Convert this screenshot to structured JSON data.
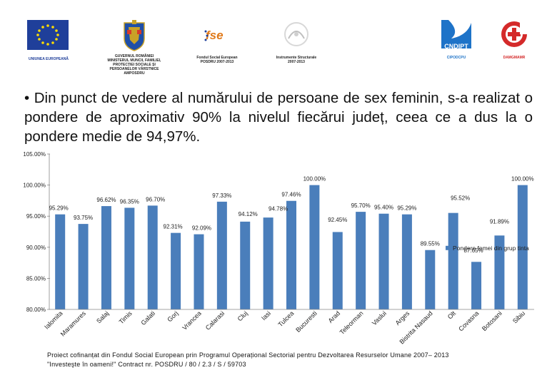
{
  "logos": {
    "eu_caption": "UNIUNEA EUROPEANĂ",
    "gov_caption_lines": [
      "GUVERNUL ROMÂNIEI",
      "MINISTERUL MUNCII, FAMILIEI,",
      "PROTECȚIEI SOCIALE ȘI",
      "PERSOANELOR VÂRSTNICE",
      "AMPOSDRU"
    ],
    "fse_mark": "fse",
    "fse_caption_lines": [
      "Fondul Social European",
      "POSDRU 2007-2013"
    ],
    "is_caption_lines": [
      "Instrumente Structurale",
      "2007-2013"
    ],
    "cndipt_mark": "CNDIPT",
    "cndipt_caption": "CIPODCPU",
    "damgmamr_caption": "DAMGMAMR"
  },
  "bullet": {
    "symbol": "•",
    "text": "Din punct de vedere al numărului de persoane de sex feminin, s-a realizat o pondere de aproximativ 90% la nivelul fiecărui județ, ceea ce a dus la o pondere medie de 94,97%."
  },
  "chart_data": {
    "type": "bar",
    "categories": [
      "Ialomita",
      "Maramures",
      "Salaj",
      "Timis",
      "Galati",
      "Gorj",
      "Vrancea",
      "Calarasi",
      "Cluj",
      "Iasi",
      "Tulcea",
      "Bucuresti",
      "Arad",
      "Teleorman",
      "Vaslui",
      "Arges",
      "Bistrita Nasaud",
      "Olt",
      "Covasna",
      "Botosani",
      "Sibiu"
    ],
    "series": [
      {
        "name": "Pondere femei din grup tinta",
        "values": [
          95.29,
          93.75,
          96.62,
          96.35,
          96.7,
          92.31,
          92.09,
          97.33,
          94.12,
          94.78,
          97.46,
          100.0,
          92.45,
          95.7,
          95.4,
          95.29,
          89.55,
          95.52,
          87.65,
          91.89,
          100.0
        ]
      }
    ],
    "data_labels": [
      "95.29%",
      "93.75%",
      "96.62%",
      "96.35%",
      "96.70%",
      "92.31%",
      "92.09%",
      "97.33%",
      "94.12%",
      "94.78%",
      "97.46%",
      "100.00%",
      "92.45%",
      "95.70%",
      "95.40%",
      "95.29%",
      "89.55%",
      "95.52%",
      "87.65%",
      "91.89%",
      "100.00%"
    ],
    "y_ticks": [
      "80.00%",
      "85.00%",
      "90.00%",
      "95.00%",
      "100.00%",
      "105.00%"
    ],
    "ylim": [
      80,
      105
    ],
    "bar_color": "#4a7ebb",
    "grid": false,
    "legend_position": "right"
  },
  "footer": {
    "line1": "Proiect cofinanțat din Fondul Social European prin Programul Operațional Sectorial pentru Dezvoltarea Resurselor Umane 2007– 2013",
    "line2": "\"Investeşte în oameni!\" Contract nr. POSDRU / 80 / 2.3 / S / 59703"
  }
}
